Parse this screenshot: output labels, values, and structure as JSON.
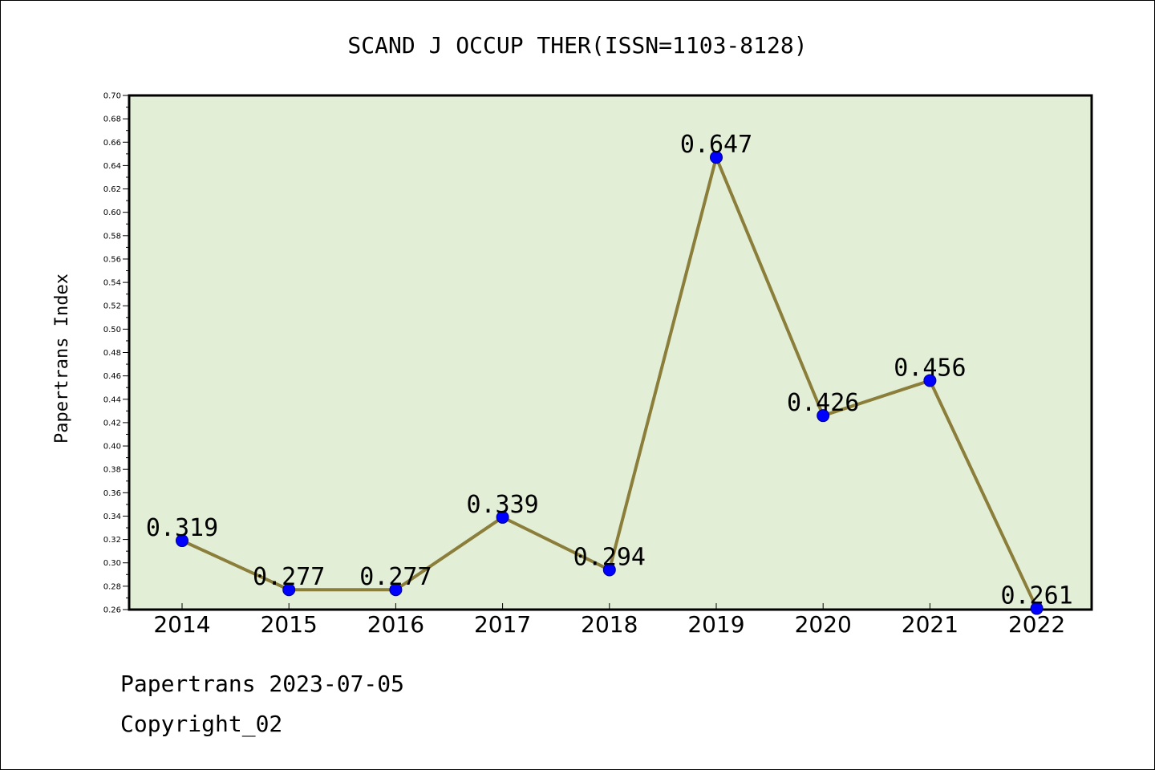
{
  "footer": {
    "line1": "Papertrans 2023-07-05",
    "line2": "Copyright_02"
  },
  "colors": {
    "plot_background": "#e2efd6",
    "line": "#8b7d3a",
    "marker": "#0000ff",
    "marker_edge": "#00008b"
  },
  "chart_data": {
    "type": "line",
    "title": "SCAND J OCCUP THER(ISSN=1103-8128)",
    "xlabel": "",
    "ylabel": "Papertrans Index",
    "categories": [
      "2014",
      "2015",
      "2016",
      "2017",
      "2018",
      "2019",
      "2020",
      "2021",
      "2022"
    ],
    "values": [
      0.319,
      0.277,
      0.277,
      0.339,
      0.294,
      0.647,
      0.426,
      0.456,
      0.261
    ],
    "data_labels": [
      "0.319",
      "0.277",
      "0.277",
      "0.339",
      "0.294",
      "0.647",
      "0.426",
      "0.456",
      "0.261"
    ],
    "ylim": [
      0.26,
      0.7
    ],
    "yticks": [
      "0.26",
      "0.28",
      "0.30",
      "0.32",
      "0.34",
      "0.36",
      "0.38",
      "0.40",
      "0.42",
      "0.44",
      "0.46",
      "0.48",
      "0.50",
      "0.52",
      "0.54",
      "0.56",
      "0.58",
      "0.60",
      "0.62",
      "0.64",
      "0.66",
      "0.68",
      "0.70"
    ],
    "grid": false,
    "legend": "none"
  }
}
